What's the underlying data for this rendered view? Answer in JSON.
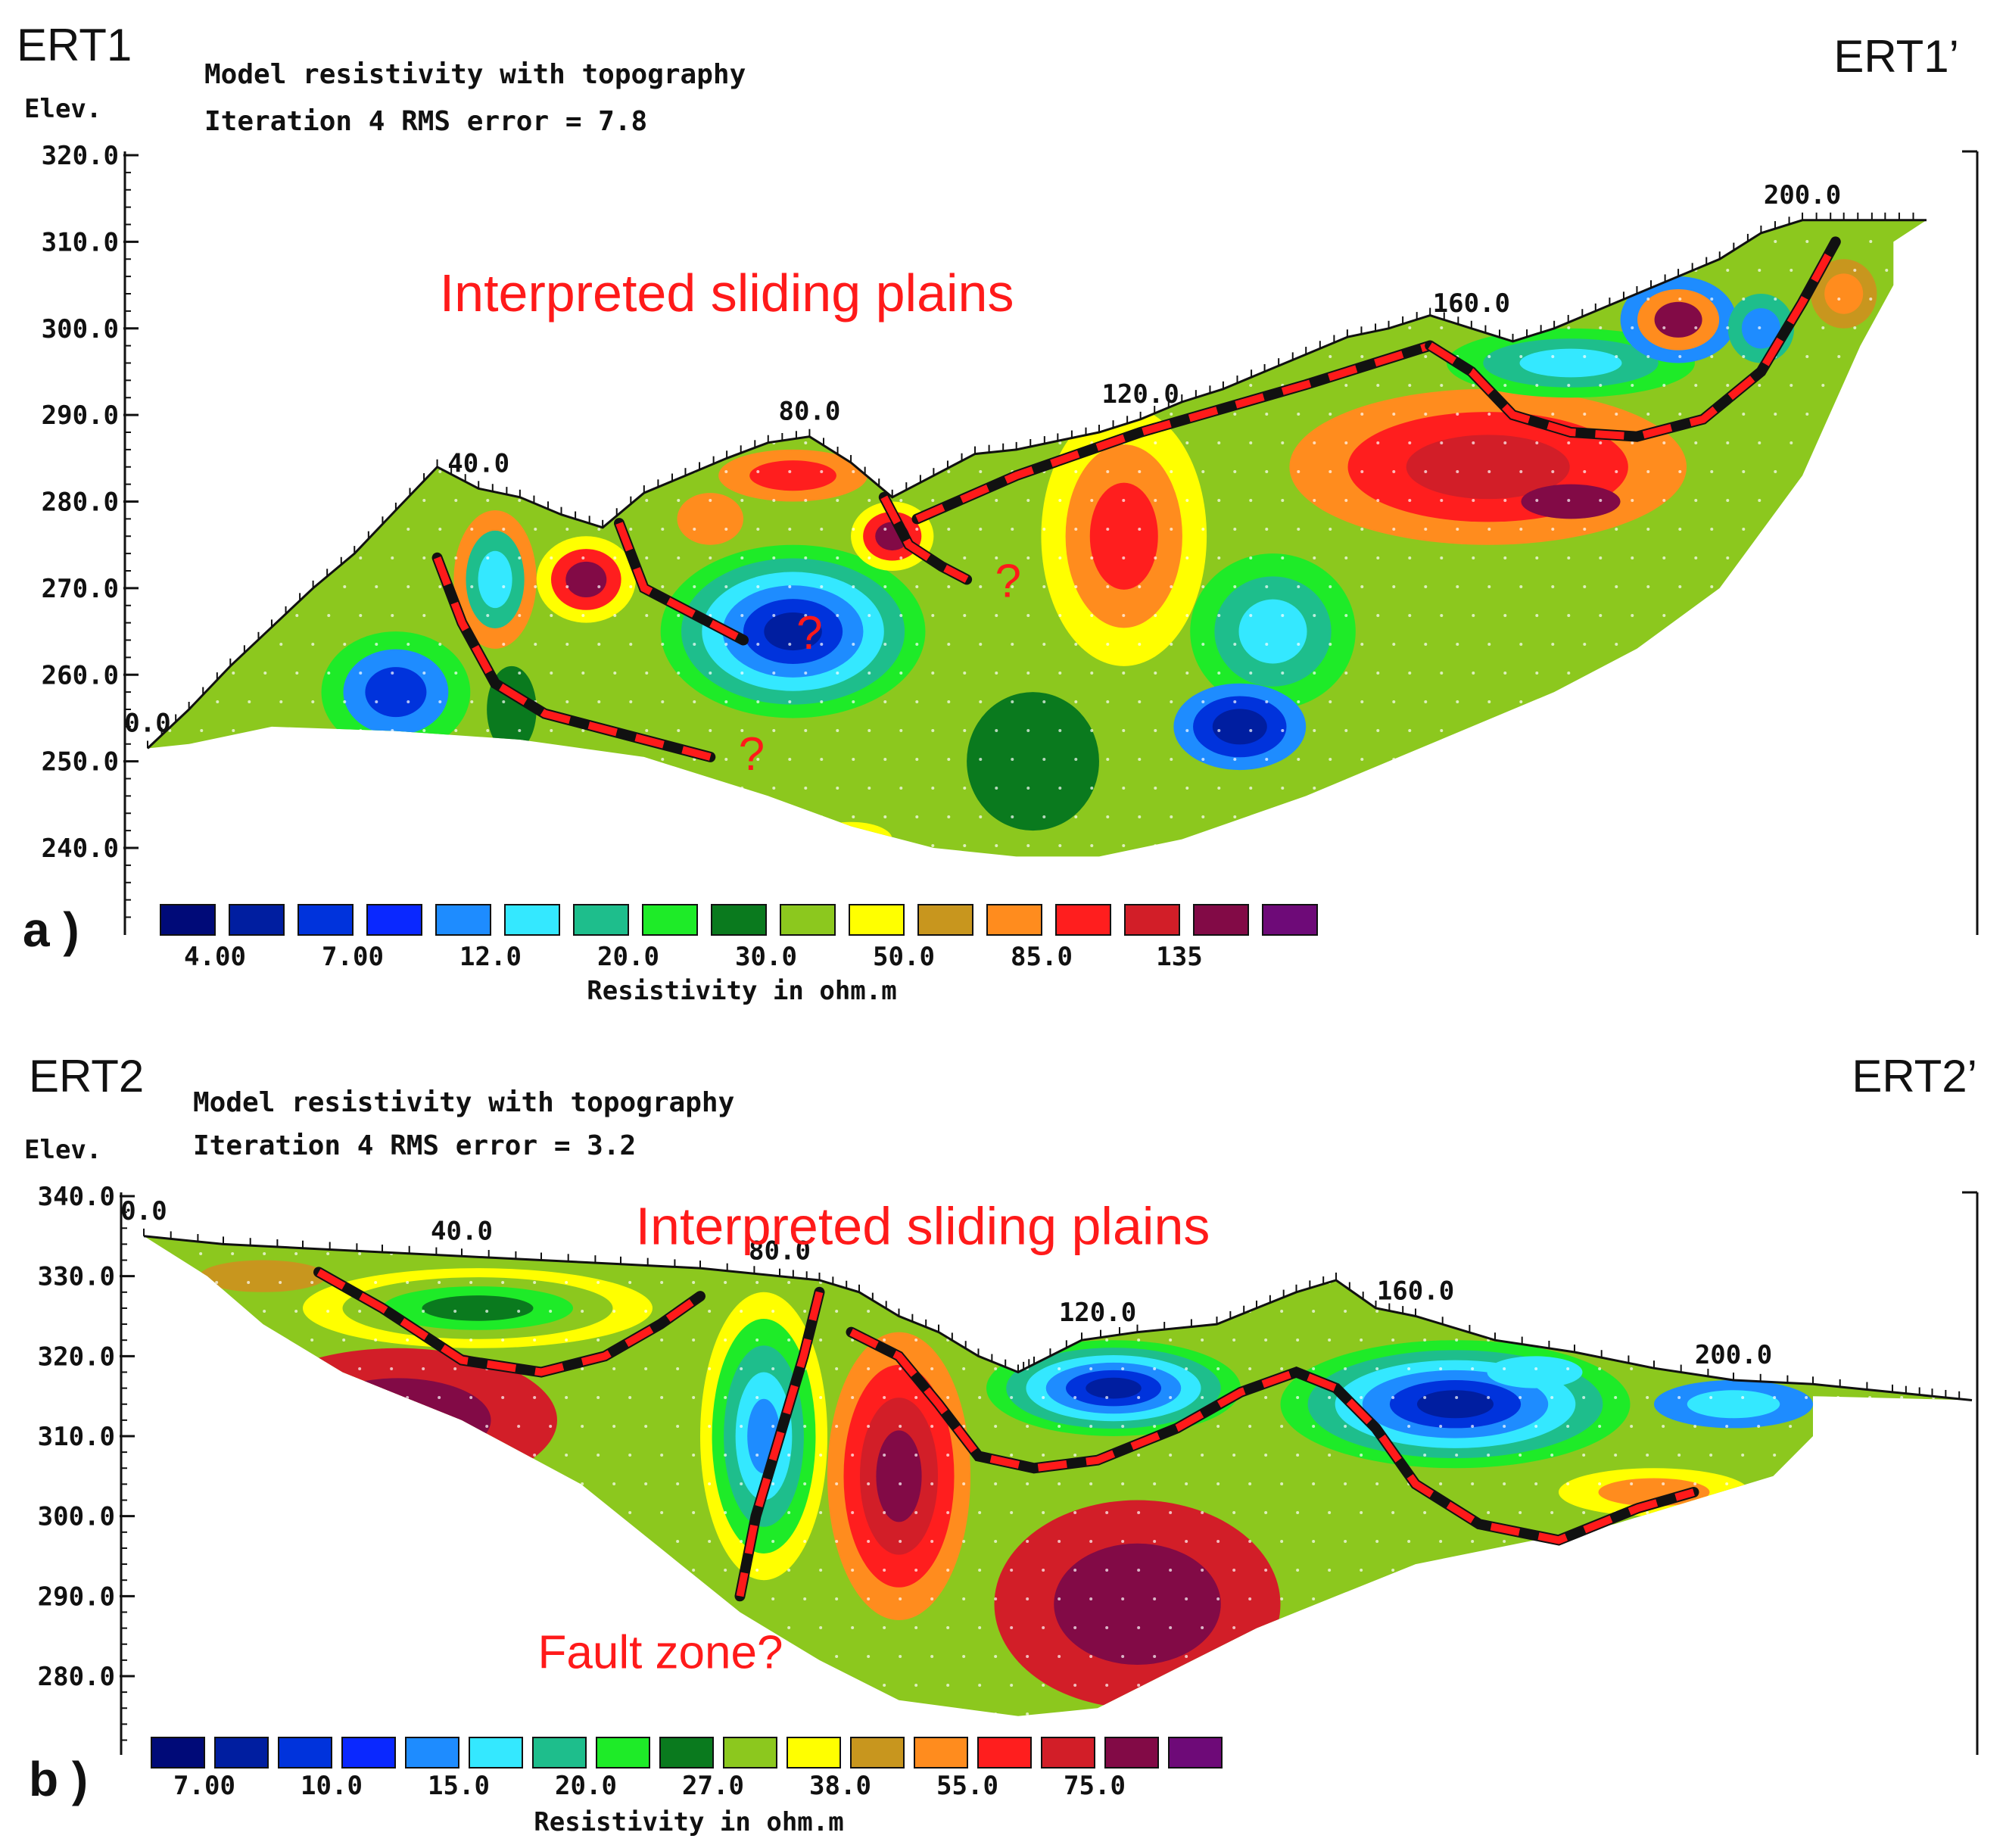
{
  "chart_data": [
    {
      "type": "heatmap",
      "panel_letter": "a )",
      "profile_start": "ERT1",
      "profile_end": "ERT1’",
      "title": "Model resistivity with topography",
      "subtitle": "Iteration 4 RMS error = 7.8",
      "ylabel": "Elev.",
      "xlabel": "",
      "y_ticks": [
        "320.0",
        "310.0",
        "300.0",
        "290.0",
        "280.0",
        "270.0",
        "260.0",
        "250.0",
        "240.0"
      ],
      "y_values": [
        320,
        310,
        300,
        290,
        280,
        270,
        260,
        250,
        240
      ],
      "ylim": [
        235,
        322
      ],
      "xlim": [
        0,
        215
      ],
      "x_tick_labels": [
        "0.0",
        "40.0",
        "80.0",
        "120.0",
        "160.0",
        "200.0"
      ],
      "x_tick_values": [
        0,
        40,
        80,
        120,
        160,
        200
      ],
      "topography": [
        [
          0,
          251.5
        ],
        [
          5,
          256
        ],
        [
          10,
          261
        ],
        [
          15,
          265.5
        ],
        [
          20,
          270
        ],
        [
          25,
          274
        ],
        [
          30,
          279
        ],
        [
          35,
          284
        ],
        [
          40,
          281.5
        ],
        [
          45,
          280.5
        ],
        [
          50,
          278.5
        ],
        [
          55,
          277
        ],
        [
          60,
          281
        ],
        [
          65,
          283
        ],
        [
          70,
          285
        ],
        [
          75,
          286.8
        ],
        [
          80,
          287.5
        ],
        [
          85,
          284.5
        ],
        [
          90,
          280.5
        ],
        [
          95,
          283
        ],
        [
          100,
          285.5
        ],
        [
          105,
          286
        ],
        [
          110,
          287
        ],
        [
          115,
          288
        ],
        [
          120,
          289.5
        ],
        [
          125,
          291.5
        ],
        [
          130,
          293
        ],
        [
          135,
          295
        ],
        [
          140,
          297
        ],
        [
          145,
          299
        ],
        [
          150,
          300
        ],
        [
          155,
          301.5
        ],
        [
          160,
          300
        ],
        [
          165,
          298.5
        ],
        [
          170,
          300
        ],
        [
          175,
          302
        ],
        [
          180,
          304
        ],
        [
          185,
          306
        ],
        [
          190,
          308
        ],
        [
          195,
          311
        ],
        [
          200,
          312.5
        ],
        [
          205,
          312.5
        ],
        [
          210,
          312.5
        ],
        [
          215,
          312.5
        ]
      ],
      "bottom_boundary": [
        [
          5,
          252
        ],
        [
          15,
          254
        ],
        [
          30,
          253.5
        ],
        [
          45,
          252.5
        ],
        [
          60,
          250.5
        ],
        [
          75,
          246
        ],
        [
          85,
          242.5
        ],
        [
          95,
          240
        ],
        [
          105,
          239
        ],
        [
          115,
          239
        ],
        [
          125,
          241
        ],
        [
          140,
          246
        ],
        [
          150,
          250
        ],
        [
          160,
          254
        ],
        [
          170,
          258
        ],
        [
          180,
          263
        ],
        [
          190,
          270
        ],
        [
          200,
          283
        ],
        [
          207,
          298
        ],
        [
          211,
          305
        ],
        [
          211,
          310
        ]
      ],
      "legend_title": "Resistivity in ohm.m",
      "legend_colors": [
        "#000a78",
        "#001ea0",
        "#0033dc",
        "#0a28ff",
        "#1e8cff",
        "#34e8ff",
        "#1ebe8c",
        "#1eeb28",
        "#0a7a1e",
        "#8cc81e",
        "#ffff00",
        "#c8961e",
        "#ff8c1e",
        "#ff1e1e",
        "#d21e28",
        "#820a46",
        "#6e0a78"
      ],
      "legend_labels": [
        "4.00",
        "7.00",
        "12.0",
        "20.0",
        "30.0",
        "50.0",
        "85.0",
        "135"
      ],
      "legend_values": [
        4.0,
        7.0,
        12.0,
        20.0,
        30.0,
        50.0,
        85.0,
        135
      ],
      "annotations": [
        {
          "text": "Interpreted sliding plains",
          "x": 70,
          "y": 302
        },
        {
          "text": "?",
          "x": 80,
          "y": 263
        },
        {
          "text": "?",
          "x": 73,
          "y": 249
        },
        {
          "text": "?",
          "x": 104,
          "y": 269
        }
      ],
      "blobs": [
        {
          "x": 30,
          "y": 258,
          "rx": 9,
          "ry": 7,
          "colors": [
            "#1eeb28",
            "#1e8cff",
            "#0033dc"
          ]
        },
        {
          "x": 42,
          "y": 271,
          "rx": 5,
          "ry": 8,
          "colors": [
            "#ff8c1e",
            "#1ebe8c",
            "#34e8ff"
          ]
        },
        {
          "x": 53,
          "y": 271,
          "rx": 6,
          "ry": 5,
          "colors": [
            "#ffff00",
            "#ff1e1e",
            "#820a46"
          ]
        },
        {
          "x": 44,
          "y": 256,
          "rx": 3,
          "ry": 5,
          "colors": [
            "#0a7a1e"
          ]
        },
        {
          "x": 78,
          "y": 265,
          "rx": 16,
          "ry": 10,
          "colors": [
            "#1eeb28",
            "#1ebe8c",
            "#34e8ff",
            "#1e8cff",
            "#0033dc",
            "#001ea0"
          ]
        },
        {
          "x": 78,
          "y": 283,
          "rx": 9,
          "ry": 3,
          "colors": [
            "#ff8c1e",
            "#ff1e1e"
          ]
        },
        {
          "x": 90,
          "y": 276,
          "rx": 5,
          "ry": 4,
          "colors": [
            "#ffff00",
            "#ff1e1e",
            "#820a46"
          ]
        },
        {
          "x": 68,
          "y": 278,
          "rx": 4,
          "ry": 3,
          "colors": [
            "#ff8c1e"
          ]
        },
        {
          "x": 85,
          "y": 241,
          "rx": 5,
          "ry": 2,
          "colors": [
            "#ffff00",
            "#ff8c1e"
          ]
        },
        {
          "x": 107,
          "y": 250,
          "rx": 8,
          "ry": 8,
          "colors": [
            "#0a7a1e"
          ]
        },
        {
          "x": 118,
          "y": 276,
          "rx": 10,
          "ry": 15,
          "colors": [
            "#ffff00",
            "#ff8c1e",
            "#ff1e1e"
          ]
        },
        {
          "x": 136,
          "y": 265,
          "rx": 10,
          "ry": 9,
          "colors": [
            "#1eeb28",
            "#1ebe8c",
            "#34e8ff"
          ]
        },
        {
          "x": 132,
          "y": 254,
          "rx": 8,
          "ry": 5,
          "colors": [
            "#1e8cff",
            "#0033dc",
            "#001ea0"
          ]
        },
        {
          "x": 162,
          "y": 284,
          "rx": 24,
          "ry": 9,
          "colors": [
            "#ff8c1e",
            "#ff1e1e",
            "#d21e28"
          ]
        },
        {
          "x": 172,
          "y": 280,
          "rx": 6,
          "ry": 2,
          "colors": [
            "#820a46"
          ]
        },
        {
          "x": 172,
          "y": 296,
          "rx": 15,
          "ry": 4,
          "colors": [
            "#1eeb28",
            "#1ebe8c",
            "#34e8ff"
          ]
        },
        {
          "x": 185,
          "y": 301,
          "rx": 7,
          "ry": 5,
          "colors": [
            "#1e8cff",
            "#ff8c1e",
            "#820a46"
          ]
        },
        {
          "x": 195,
          "y": 300,
          "rx": 4,
          "ry": 4,
          "colors": [
            "#1ebe8c",
            "#1e8cff"
          ]
        },
        {
          "x": 205,
          "y": 304,
          "rx": 4,
          "ry": 4,
          "colors": [
            "#c8961e",
            "#ff8c1e"
          ]
        }
      ],
      "sliding_plains": [
        [
          [
            35,
            273.5
          ],
          [
            38,
            266
          ],
          [
            42,
            259
          ],
          [
            48,
            255.5
          ],
          [
            58,
            253
          ],
          [
            68,
            250.5
          ]
        ],
        [
          [
            57,
            277.5
          ],
          [
            60,
            270
          ],
          [
            66,
            267
          ],
          [
            72,
            264
          ]
        ],
        [
          [
            89,
            280.5
          ],
          [
            92,
            275
          ],
          [
            96,
            272.5
          ],
          [
            99,
            271
          ]
        ],
        [
          [
            93,
            278
          ],
          [
            105,
            283
          ],
          [
            120,
            288
          ],
          [
            140,
            293.5
          ],
          [
            155,
            298
          ]
        ],
        [
          [
            155,
            298
          ],
          [
            160,
            295
          ],
          [
            165,
            290
          ],
          [
            172,
            288
          ],
          [
            180,
            287.5
          ],
          [
            188,
            289.5
          ],
          [
            195,
            295
          ],
          [
            200,
            303
          ],
          [
            204,
            310
          ]
        ]
      ]
    },
    {
      "type": "heatmap",
      "panel_letter": "b )",
      "profile_start": "ERT2",
      "profile_end": "ERT2’",
      "title": "Model resistivity with topography",
      "subtitle": "Iteration 4 RMS error = 3.2",
      "ylabel": "Elev.",
      "xlabel": "",
      "y_ticks": [
        "340.0",
        "330.0",
        "320.0",
        "310.0",
        "300.0",
        "290.0",
        "280.0"
      ],
      "y_values": [
        340,
        330,
        320,
        310,
        300,
        290,
        280
      ],
      "ylim": [
        274,
        341
      ],
      "xlim": [
        0,
        230
      ],
      "x_tick_labels": [
        "0.0",
        "40.0",
        "80.0",
        "120.0",
        "160.0",
        "200.0"
      ],
      "x_tick_values": [
        0,
        40,
        80,
        120,
        160,
        200
      ],
      "topography": [
        [
          0,
          335
        ],
        [
          10,
          334
        ],
        [
          20,
          333.5
        ],
        [
          30,
          333
        ],
        [
          40,
          332.5
        ],
        [
          50,
          332
        ],
        [
          60,
          331.5
        ],
        [
          70,
          331
        ],
        [
          80,
          330
        ],
        [
          85,
          329.5
        ],
        [
          90,
          328
        ],
        [
          95,
          325
        ],
        [
          100,
          323
        ],
        [
          105,
          320
        ],
        [
          110,
          318
        ],
        [
          112,
          319
        ],
        [
          118,
          322
        ],
        [
          125,
          323
        ],
        [
          135,
          324
        ],
        [
          140,
          326
        ],
        [
          145,
          328
        ],
        [
          150,
          329.5
        ],
        [
          155,
          326
        ],
        [
          160,
          325
        ],
        [
          170,
          322
        ],
        [
          180,
          320.5
        ],
        [
          190,
          318.5
        ],
        [
          200,
          317
        ],
        [
          210,
          316.5
        ],
        [
          220,
          315.5
        ],
        [
          225,
          315
        ],
        [
          230,
          314.5
        ]
      ],
      "bottom_boundary": [
        [
          8,
          330
        ],
        [
          15,
          324
        ],
        [
          25,
          318
        ],
        [
          40,
          312
        ],
        [
          55,
          304
        ],
        [
          65,
          296
        ],
        [
          75,
          288
        ],
        [
          85,
          282
        ],
        [
          95,
          277
        ],
        [
          110,
          275
        ],
        [
          120,
          276
        ],
        [
          130,
          281
        ],
        [
          140,
          286
        ],
        [
          150,
          290
        ],
        [
          160,
          294
        ],
        [
          175,
          297
        ],
        [
          185,
          299
        ],
        [
          195,
          302
        ],
        [
          205,
          305
        ],
        [
          210,
          310
        ],
        [
          210,
          315
        ]
      ],
      "legend_title": "Resistivity in ohm.m",
      "legend_colors": [
        "#000a78",
        "#001ea0",
        "#0033dc",
        "#0a28ff",
        "#1e8cff",
        "#34e8ff",
        "#1ebe8c",
        "#1eeb28",
        "#0a7a1e",
        "#8cc81e",
        "#ffff00",
        "#c8961e",
        "#ff8c1e",
        "#ff1e1e",
        "#d21e28",
        "#820a46",
        "#6e0a78"
      ],
      "legend_labels": [
        "7.00",
        "10.0",
        "15.0",
        "20.0",
        "27.0",
        "38.0",
        "55.0",
        "75.0"
      ],
      "legend_values": [
        7.0,
        10.0,
        15.0,
        20.0,
        27.0,
        38.0,
        55.0,
        75.0
      ],
      "annotations": [
        {
          "text": "Interpreted sliding plains",
          "x": 98,
          "y": 334
        },
        {
          "text": "Fault zone?",
          "x": 65,
          "y": 281
        }
      ],
      "blobs": [
        {
          "x": 32,
          "y": 312,
          "rx": 20,
          "ry": 9,
          "colors": [
            "#d21e28",
            "#820a46"
          ]
        },
        {
          "x": 42,
          "y": 326,
          "rx": 22,
          "ry": 5,
          "colors": [
            "#ffff00",
            "#8cc81e",
            "#1eeb28",
            "#0a7a1e"
          ]
        },
        {
          "x": 15,
          "y": 330,
          "rx": 8,
          "ry": 2,
          "colors": [
            "#c8961e"
          ]
        },
        {
          "x": 78,
          "y": 310,
          "rx": 8,
          "ry": 18,
          "colors": [
            "#ffff00",
            "#1eeb28",
            "#1ebe8c",
            "#34e8ff",
            "#1e8cff"
          ]
        },
        {
          "x": 95,
          "y": 305,
          "rx": 9,
          "ry": 18,
          "colors": [
            "#ff8c1e",
            "#ff1e1e",
            "#d21e28",
            "#820a46"
          ]
        },
        {
          "x": 125,
          "y": 289,
          "rx": 18,
          "ry": 13,
          "colors": [
            "#d21e28",
            "#820a46"
          ]
        },
        {
          "x": 122,
          "y": 316,
          "rx": 16,
          "ry": 6,
          "colors": [
            "#1eeb28",
            "#1ebe8c",
            "#34e8ff",
            "#1e8cff",
            "#0033dc",
            "#001ea0"
          ]
        },
        {
          "x": 165,
          "y": 314,
          "rx": 22,
          "ry": 8,
          "colors": [
            "#1eeb28",
            "#1ebe8c",
            "#34e8ff",
            "#1e8cff",
            "#0033dc",
            "#001ea0"
          ]
        },
        {
          "x": 175,
          "y": 318,
          "rx": 6,
          "ry": 2,
          "colors": [
            "#34e8ff"
          ]
        },
        {
          "x": 200,
          "y": 314,
          "rx": 10,
          "ry": 3,
          "colors": [
            "#1e8cff",
            "#34e8ff"
          ]
        },
        {
          "x": 190,
          "y": 303,
          "rx": 12,
          "ry": 3,
          "colors": [
            "#ffff00",
            "#ff8c1e"
          ]
        }
      ],
      "sliding_plains": [
        [
          [
            22,
            330.5
          ],
          [
            30,
            326
          ],
          [
            40,
            319.5
          ],
          [
            50,
            318
          ],
          [
            58,
            320
          ],
          [
            65,
            324
          ],
          [
            70,
            327.5
          ]
        ],
        [
          [
            85,
            328
          ],
          [
            83,
            320
          ],
          [
            80,
            310
          ],
          [
            77,
            300
          ],
          [
            75,
            290
          ]
        ],
        [
          [
            89,
            323
          ],
          [
            95,
            320
          ],
          [
            100,
            314
          ],
          [
            105,
            307.5
          ],
          [
            112,
            306
          ],
          [
            120,
            307
          ],
          [
            130,
            311
          ],
          [
            138,
            315.5
          ],
          [
            145,
            318
          ],
          [
            150,
            316
          ],
          [
            155,
            311
          ],
          [
            160,
            304
          ],
          [
            168,
            299
          ],
          [
            178,
            297
          ],
          [
            188,
            301
          ],
          [
            195,
            303
          ]
        ]
      ]
    }
  ]
}
